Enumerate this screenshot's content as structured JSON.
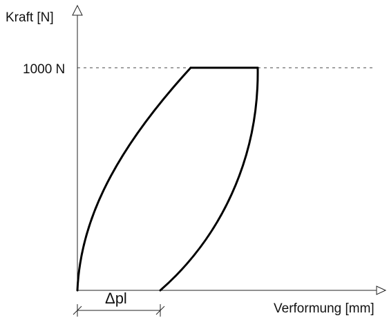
{
  "diagram": {
    "y_axis_label": "Kraft [N]",
    "x_axis_label": "Verformung [mm]",
    "force_tick_label": "1000 N",
    "plastic_deformation_label": "Δpl"
  },
  "colors": {
    "line": "#000000",
    "axis": "#222222",
    "dashed_guide": "#444444",
    "text": "#111111"
  }
}
